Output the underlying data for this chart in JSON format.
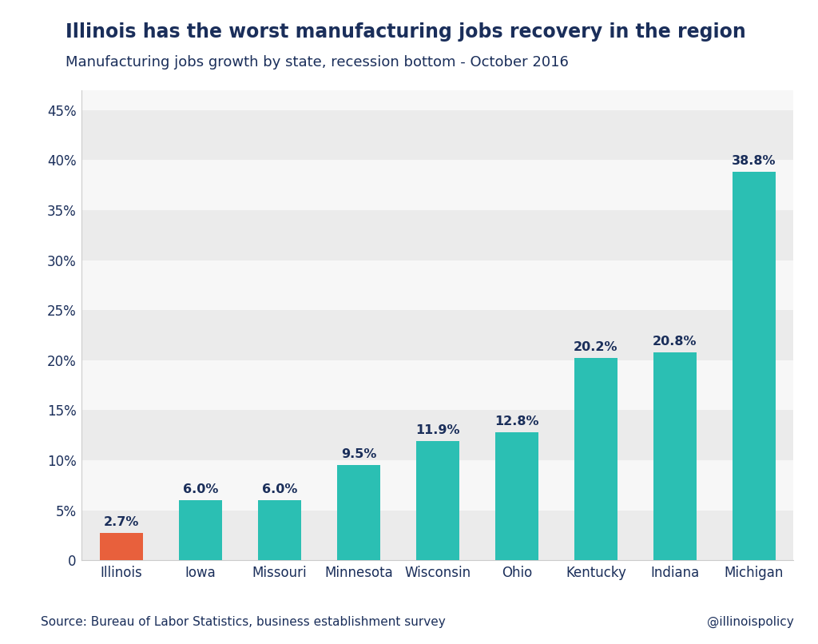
{
  "title": "Illinois has the worst manufacturing jobs recovery in the region",
  "subtitle": "Manufacturing jobs growth by state, recession bottom - October 2016",
  "categories": [
    "Illinois",
    "Iowa",
    "Missouri",
    "Minnesota",
    "Wisconsin",
    "Ohio",
    "Kentucky",
    "Indiana",
    "Michigan"
  ],
  "values": [
    2.7,
    6.0,
    6.0,
    9.5,
    11.9,
    12.8,
    20.2,
    20.8,
    38.8
  ],
  "bar_colors": [
    "#e8603c",
    "#2bbfb3",
    "#2bbfb3",
    "#2bbfb3",
    "#2bbfb3",
    "#2bbfb3",
    "#2bbfb3",
    "#2bbfb3",
    "#2bbfb3"
  ],
  "labels": [
    "2.7%",
    "6.0%",
    "6.0%",
    "9.5%",
    "11.9%",
    "12.8%",
    "20.2%",
    "20.8%",
    "38.8%"
  ],
  "ylim": [
    0,
    47
  ],
  "yticks": [
    0,
    5,
    10,
    15,
    20,
    25,
    30,
    35,
    40,
    45
  ],
  "ytick_labels": [
    "0",
    "5%",
    "10%",
    "15%",
    "20%",
    "25%",
    "30%",
    "35%",
    "40%",
    "45%"
  ],
  "source_text": "Source: Bureau of Labor Statistics, business establishment survey",
  "handle_text": "@illinoispolicy",
  "title_color": "#1a2e5a",
  "subtitle_color": "#1a2e5a",
  "axis_color": "#1a2e5a",
  "label_color": "#1a2e5a",
  "background_color": "#ffffff",
  "band_color_dark": "#ebebeb",
  "band_color_light": "#f7f7f7",
  "title_fontsize": 17,
  "subtitle_fontsize": 13,
  "label_fontsize": 11.5,
  "tick_fontsize": 12,
  "source_fontsize": 11
}
